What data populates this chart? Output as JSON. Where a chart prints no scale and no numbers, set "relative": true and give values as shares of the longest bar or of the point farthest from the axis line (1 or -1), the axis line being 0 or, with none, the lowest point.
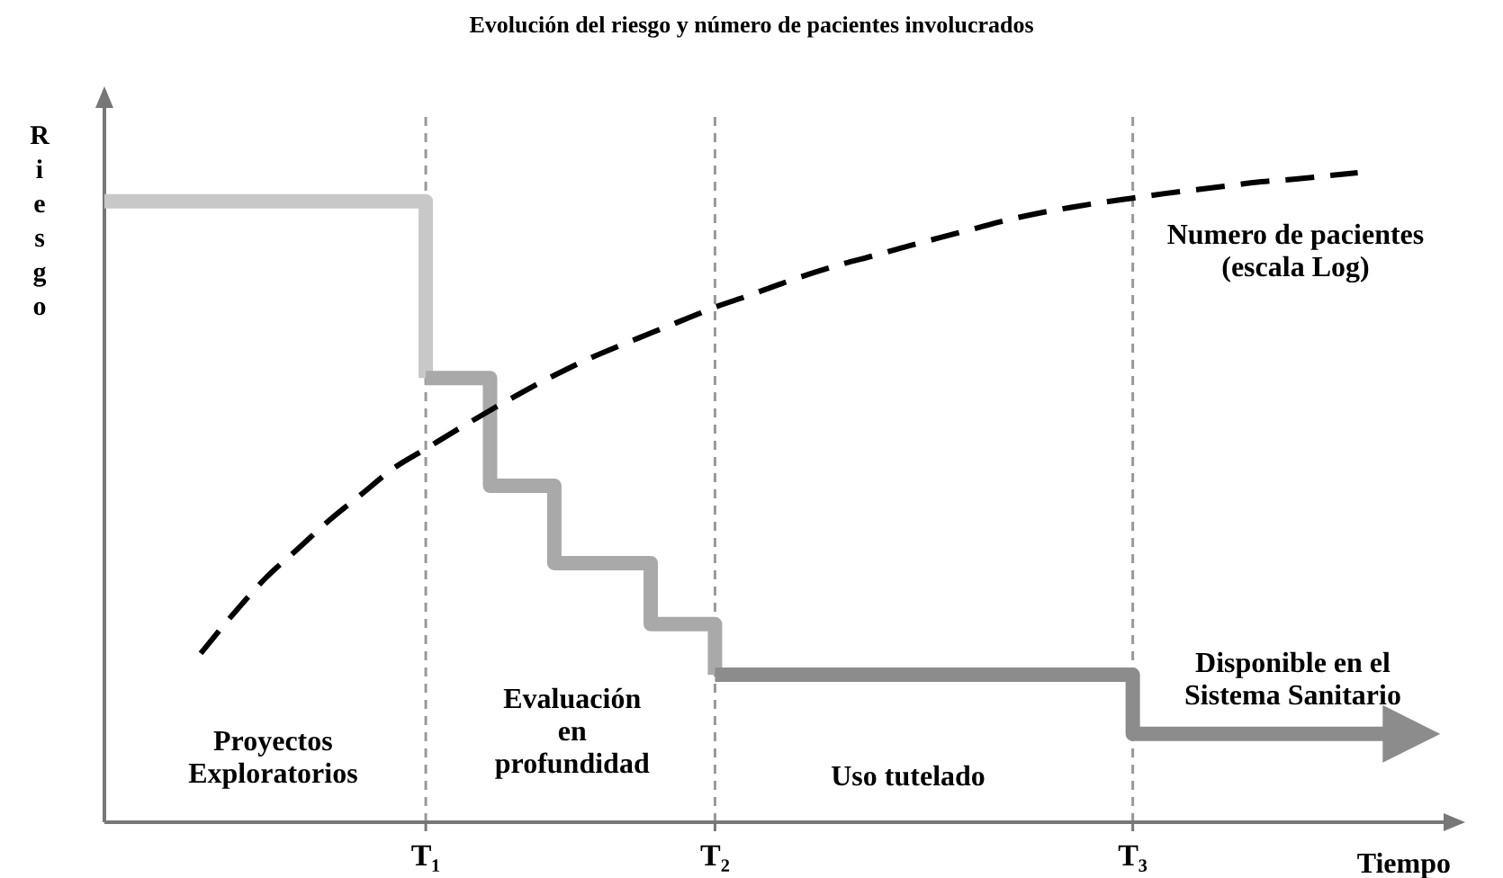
{
  "chart_data": {
    "type": "line",
    "title": "Evolución del riesgo y número de pacientes involucrados",
    "xlabel": "Tiempo",
    "ylabel": "Riesgo",
    "relative": true,
    "categories": [
      null,
      null,
      null,
      null,
      null,
      null,
      null,
      null,
      null,
      null,
      "T₁",
      null,
      null,
      null,
      null,
      null,
      null,
      null,
      null,
      "T₂",
      null,
      null,
      null,
      null,
      null,
      null,
      null,
      null,
      null,
      null,
      null,
      null,
      "T₃",
      null,
      null,
      null,
      null,
      null,
      null,
      null,
      null,
      null
    ],
    "ref_lines": [
      {
        "axis": "x",
        "value": "T₁",
        "color": "#999999",
        "line_style": "dashed"
      },
      {
        "axis": "x",
        "value": "T₂",
        "color": "#999999",
        "line_style": "dashed"
      },
      {
        "axis": "x",
        "value": "T₃",
        "color": "#999999",
        "line_style": "dashed"
      }
    ],
    "series": [
      {
        "type": "step",
        "color": "#c8c8c8",
        "line_style": "solid",
        "values": [
          0.956,
          0.956,
          0.956,
          0.956,
          0.956,
          0.956,
          0.956,
          0.956,
          0.956,
          0.956,
          0.684,
          null,
          null,
          null,
          null,
          null,
          null,
          null,
          null,
          null,
          null,
          null,
          null,
          null,
          null,
          null,
          null,
          null,
          null,
          null,
          null,
          null,
          null,
          null,
          null,
          null,
          null,
          null,
          null,
          null,
          null,
          null
        ]
      },
      {
        "type": "step",
        "color": "#a9a9a9",
        "line_style": "solid",
        "values": [
          null,
          null,
          null,
          null,
          null,
          null,
          null,
          null,
          null,
          null,
          0.684,
          0.684,
          0.518,
          0.518,
          0.399,
          0.399,
          0.399,
          0.305,
          0.305,
          0.227,
          null,
          null,
          null,
          null,
          null,
          null,
          null,
          null,
          null,
          null,
          null,
          null,
          null,
          null,
          null,
          null,
          null,
          null,
          null,
          null,
          null,
          null
        ]
      },
      {
        "type": "step",
        "color": "#8c8c8c",
        "line_style": "solid",
        "values": [
          null,
          null,
          null,
          null,
          null,
          null,
          null,
          null,
          null,
          null,
          null,
          null,
          null,
          null,
          null,
          null,
          null,
          null,
          null,
          0.227,
          0.227,
          0.227,
          0.227,
          0.227,
          0.227,
          0.227,
          0.227,
          0.227,
          0.227,
          0.227,
          0.227,
          0.227,
          0.136,
          0.136,
          0.136,
          0.136,
          0.136,
          0.136,
          0.136,
          0.136,
          0.136,
          null
        ]
      },
      {
        "color": "#000000",
        "line_style": "dashed",
        "values": [
          null,
          null,
          null,
          0.26,
          0.32,
          0.375,
          0.42,
          0.465,
          0.505,
          0.545,
          0.575,
          0.605,
          0.634,
          0.662,
          0.688,
          0.712,
          0.733,
          0.753,
          0.773,
          0.793,
          0.81,
          0.828,
          0.845,
          0.86,
          0.873,
          0.887,
          0.9,
          0.913,
          0.926,
          0.937,
          0.946,
          0.954,
          0.961,
          0.968,
          0.974,
          0.98,
          0.986,
          0.99,
          0.995,
          1.0,
          null,
          null
        ]
      }
    ],
    "annotations": [
      "Proyectos\nExploratorios",
      "Evaluación\nen\nprofundidad",
      "Uso tutelado",
      "Disponible en el\nSistema Sanitario",
      "Numero de pacientes\n(escala Log)"
    ]
  }
}
